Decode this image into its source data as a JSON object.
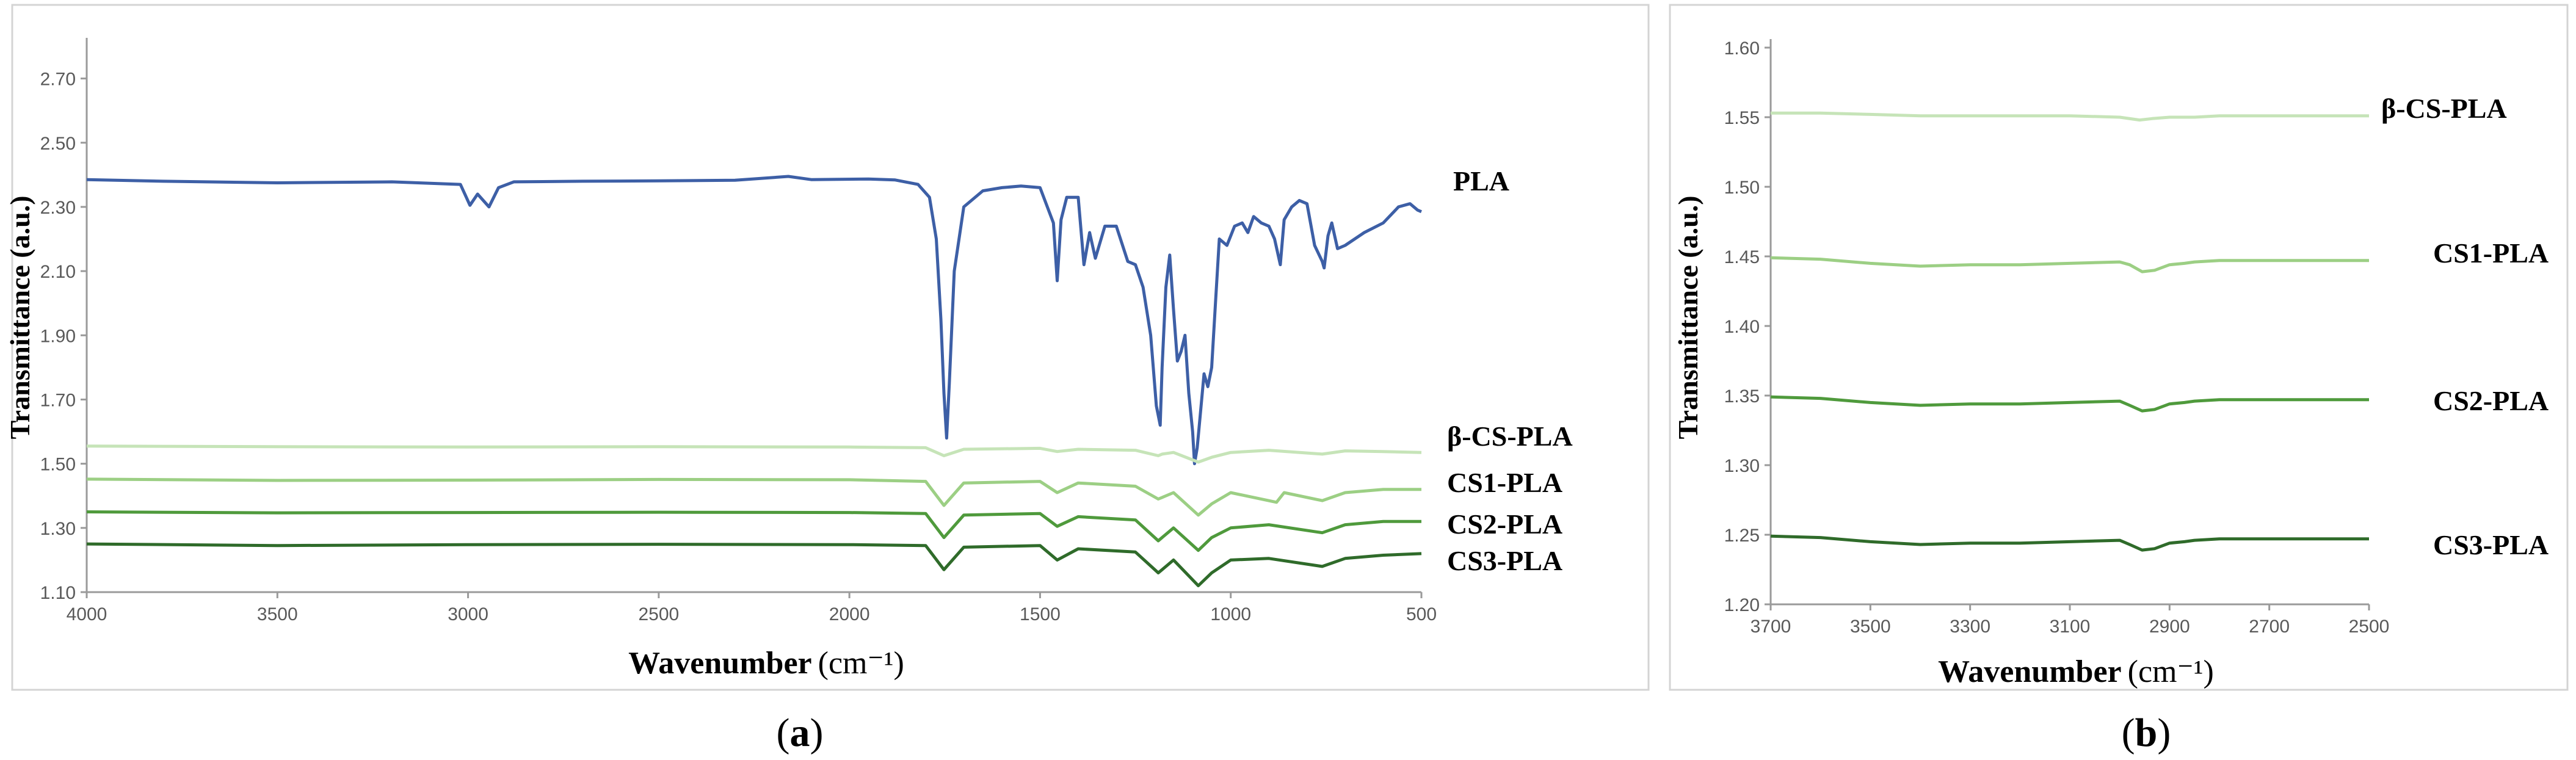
{
  "figure": {
    "panel_a_caption": {
      "pre": "(",
      "letter": "a",
      "post": ")"
    },
    "panel_b_caption": {
      "pre": "(",
      "letter": "b",
      "post": ")"
    }
  },
  "chart_data": [
    {
      "type": "line",
      "xlabel": "Wavenumber",
      "xunit": "(cm⁻¹)",
      "ylabel": "Transmittance (a.u.)",
      "xlim": [
        4000,
        500
      ],
      "ylim": [
        1.1,
        2.8
      ],
      "yticks": [
        "1.10",
        "1.30",
        "1.50",
        "1.70",
        "1.90",
        "2.10",
        "2.30",
        "2.50",
        "2.70"
      ],
      "xticks": [
        "4000",
        "3500",
        "3000",
        "2500",
        "2000",
        "1500",
        "1000",
        "500"
      ],
      "series": [
        {
          "name": "PLA",
          "color": "#3d5fa6",
          "x": [
            4000,
            3800,
            3500,
            3200,
            3020,
            2995,
            2975,
            2945,
            2920,
            2880,
            2700,
            2500,
            2300,
            2160,
            2100,
            1950,
            1880,
            1820,
            1790,
            1772,
            1760,
            1752,
            1745,
            1738,
            1725,
            1700,
            1650,
            1600,
            1550,
            1500,
            1465,
            1455,
            1445,
            1430,
            1400,
            1385,
            1370,
            1355,
            1330,
            1300,
            1270,
            1250,
            1230,
            1210,
            1195,
            1185,
            1180,
            1170,
            1160,
            1150,
            1140,
            1130,
            1120,
            1110,
            1100,
            1095,
            1088,
            1080,
            1070,
            1060,
            1050,
            1040,
            1030,
            1010,
            990,
            970,
            955,
            940,
            920,
            900,
            885,
            870,
            860,
            840,
            820,
            800,
            780,
            760,
            755,
            745,
            735,
            720,
            700,
            650,
            600,
            560,
            530,
            510,
            500
          ],
          "y": [
            2.385,
            2.38,
            2.375,
            2.378,
            2.37,
            2.305,
            2.34,
            2.3,
            2.36,
            2.378,
            2.38,
            2.381,
            2.383,
            2.395,
            2.385,
            2.387,
            2.384,
            2.37,
            2.33,
            2.2,
            1.95,
            1.72,
            1.58,
            1.75,
            2.1,
            2.3,
            2.35,
            2.36,
            2.365,
            2.36,
            2.25,
            2.07,
            2.26,
            2.33,
            2.33,
            2.12,
            2.22,
            2.14,
            2.24,
            2.24,
            2.13,
            2.12,
            2.05,
            1.9,
            1.68,
            1.62,
            1.8,
            2.05,
            2.15,
            1.98,
            1.82,
            1.85,
            1.9,
            1.72,
            1.6,
            1.5,
            1.55,
            1.65,
            1.78,
            1.74,
            1.8,
            2.0,
            2.2,
            2.18,
            2.24,
            2.25,
            2.22,
            2.27,
            2.25,
            2.24,
            2.2,
            2.12,
            2.26,
            2.3,
            2.32,
            2.31,
            2.18,
            2.13,
            2.11,
            2.21,
            2.25,
            2.17,
            2.18,
            2.22,
            2.25,
            2.3,
            2.31,
            2.29,
            2.285
          ]
        },
        {
          "name": "β-CS-PLA",
          "color": "#c6e4b8",
          "x": [
            4000,
            3500,
            3000,
            2500,
            2000,
            1800,
            1752,
            1700,
            1500,
            1455,
            1400,
            1250,
            1190,
            1180,
            1150,
            1085,
            1050,
            1000,
            900,
            760,
            700,
            600,
            500
          ],
          "y": [
            1.555,
            1.553,
            1.552,
            1.553,
            1.552,
            1.55,
            1.525,
            1.545,
            1.548,
            1.538,
            1.545,
            1.542,
            1.525,
            1.53,
            1.535,
            1.505,
            1.52,
            1.535,
            1.542,
            1.53,
            1.54,
            1.538,
            1.535
          ]
        },
        {
          "name": "CS1-PLA",
          "color": "#9ccf84",
          "x": [
            4000,
            3500,
            3000,
            2500,
            2000,
            1800,
            1752,
            1700,
            1500,
            1455,
            1400,
            1250,
            1190,
            1180,
            1150,
            1085,
            1050,
            1000,
            880,
            860,
            760,
            700,
            600,
            500
          ],
          "y": [
            1.452,
            1.448,
            1.449,
            1.451,
            1.45,
            1.445,
            1.37,
            1.44,
            1.445,
            1.41,
            1.44,
            1.43,
            1.39,
            1.395,
            1.41,
            1.34,
            1.375,
            1.41,
            1.38,
            1.41,
            1.385,
            1.41,
            1.42,
            1.42
          ]
        },
        {
          "name": "CS2-PLA",
          "color": "#4f9a3c",
          "x": [
            4000,
            3500,
            3000,
            2500,
            2000,
            1800,
            1752,
            1700,
            1500,
            1455,
            1400,
            1250,
            1190,
            1180,
            1150,
            1085,
            1050,
            1000,
            900,
            760,
            700,
            600,
            500
          ],
          "y": [
            1.35,
            1.347,
            1.348,
            1.349,
            1.348,
            1.345,
            1.27,
            1.34,
            1.345,
            1.305,
            1.335,
            1.325,
            1.26,
            1.27,
            1.3,
            1.23,
            1.27,
            1.3,
            1.31,
            1.285,
            1.31,
            1.32,
            1.32
          ]
        },
        {
          "name": "CS3-PLA",
          "color": "#2f6b2a",
          "x": [
            4000,
            3500,
            3000,
            2500,
            2000,
            1800,
            1752,
            1700,
            1500,
            1455,
            1400,
            1250,
            1190,
            1180,
            1150,
            1085,
            1050,
            1000,
            900,
            760,
            700,
            600,
            500
          ],
          "y": [
            1.25,
            1.245,
            1.248,
            1.249,
            1.248,
            1.245,
            1.17,
            1.24,
            1.245,
            1.2,
            1.235,
            1.225,
            1.16,
            1.17,
            1.2,
            1.12,
            1.16,
            1.2,
            1.205,
            1.18,
            1.205,
            1.215,
            1.22
          ]
        }
      ]
    },
    {
      "type": "line",
      "xlabel": "Wavenumber",
      "xunit": "(cm⁻¹)",
      "ylabel": "Transmittance (a.u.)",
      "xlim": [
        3700,
        2500
      ],
      "ylim": [
        1.2,
        1.6
      ],
      "yticks": [
        "1.20",
        "1.25",
        "1.30",
        "1.35",
        "1.40",
        "1.45",
        "1.50",
        "1.55",
        "1.60"
      ],
      "xticks": [
        "3700",
        "3500",
        "3300",
        "3100",
        "2900",
        "2700",
        "2500"
      ],
      "series": [
        {
          "name": "β-CS-PLA",
          "color": "#c6e4b8",
          "x": [
            3700,
            3600,
            3500,
            3400,
            3300,
            3200,
            3100,
            3000,
            2960,
            2935,
            2900,
            2850,
            2800,
            2700,
            2600,
            2500
          ],
          "y": [
            1.553,
            1.553,
            1.552,
            1.551,
            1.551,
            1.551,
            1.551,
            1.55,
            1.548,
            1.549,
            1.55,
            1.55,
            1.551,
            1.551,
            1.551,
            1.551
          ]
        },
        {
          "name": "CS1-PLA",
          "color": "#9ccf84",
          "x": [
            3700,
            3600,
            3500,
            3400,
            3300,
            3200,
            3100,
            3000,
            2980,
            2955,
            2930,
            2900,
            2870,
            2850,
            2800,
            2700,
            2600,
            2500
          ],
          "y": [
            1.449,
            1.448,
            1.445,
            1.443,
            1.444,
            1.444,
            1.445,
            1.446,
            1.444,
            1.439,
            1.44,
            1.444,
            1.445,
            1.446,
            1.447,
            1.447,
            1.447,
            1.447
          ]
        },
        {
          "name": "CS2-PLA",
          "color": "#4f9a3c",
          "x": [
            3700,
            3600,
            3500,
            3400,
            3300,
            3200,
            3100,
            3000,
            2980,
            2955,
            2930,
            2900,
            2870,
            2850,
            2800,
            2700,
            2600,
            2500
          ],
          "y": [
            1.349,
            1.348,
            1.345,
            1.343,
            1.344,
            1.344,
            1.345,
            1.346,
            1.343,
            1.339,
            1.34,
            1.344,
            1.345,
            1.346,
            1.347,
            1.347,
            1.347,
            1.347
          ]
        },
        {
          "name": "CS3-PLA",
          "color": "#2f6b2a",
          "x": [
            3700,
            3600,
            3500,
            3400,
            3300,
            3200,
            3100,
            3000,
            2980,
            2955,
            2930,
            2900,
            2870,
            2850,
            2800,
            2700,
            2600,
            2500
          ],
          "y": [
            1.249,
            1.248,
            1.245,
            1.243,
            1.244,
            1.244,
            1.245,
            1.246,
            1.243,
            1.239,
            1.24,
            1.244,
            1.245,
            1.246,
            1.247,
            1.247,
            1.247,
            1.247
          ]
        }
      ]
    }
  ]
}
